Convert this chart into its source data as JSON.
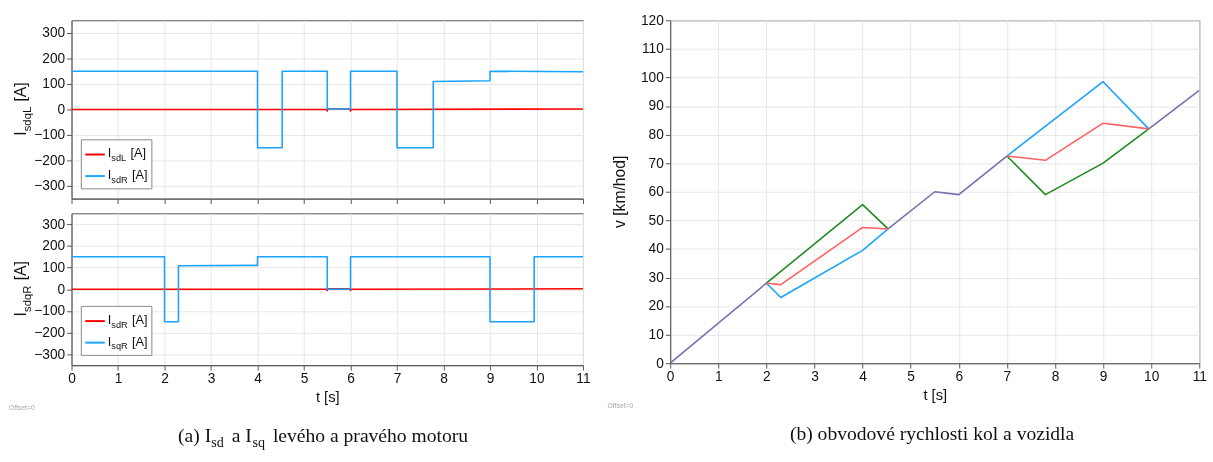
{
  "chart_data": [
    {
      "type": "line",
      "ylabel": "I$_{sdqL}$ [A]",
      "xlim": [
        0,
        11
      ],
      "xticks": [
        0,
        1,
        2,
        3,
        4,
        5,
        6,
        7,
        8,
        9,
        10,
        11
      ],
      "ylim": [
        -350,
        350
      ],
      "yticks": [
        -300,
        -200,
        -100,
        0,
        100,
        200,
        300
      ],
      "grid": true,
      "legend": "bottom left",
      "tick_labels": "y",
      "series": [
        {
          "name": "I$_{sdL}$ [A]",
          "color": "#ff0000",
          "x": [
            0,
            5.49,
            5.5,
            5.51,
            5.99,
            6,
            6.01,
            11
          ],
          "values": [
            0,
            0,
            -6,
            2,
            2,
            -6,
            0,
            2
          ]
        },
        {
          "name": "I$_{sdR}$ [A]",
          "color": "#1aa3ff",
          "x": [
            0,
            4,
            4,
            4.53,
            4.53,
            5.5,
            5.5,
            6,
            6,
            7,
            7,
            7.78,
            7.78,
            9,
            9,
            11
          ],
          "values": [
            150,
            150,
            -150,
            -150,
            150,
            150,
            2,
            2,
            150,
            150,
            -150,
            -150,
            110,
            113,
            150,
            148
          ]
        }
      ]
    },
    {
      "type": "line",
      "xlabel": "t [s]",
      "ylabel": "I$_{sdqR}$ [A]",
      "xlim": [
        0,
        11
      ],
      "xticks": [
        0,
        1,
        2,
        3,
        4,
        5,
        6,
        7,
        8,
        9,
        10,
        11
      ],
      "ylim": [
        -350,
        350
      ],
      "yticks": [
        -300,
        -200,
        -100,
        0,
        100,
        200,
        300
      ],
      "grid": true,
      "legend": "bottom left",
      "annotations": [
        "Offset=0",
        "(a) I$_{sd}$ a I$_{sq}$ levého a pravého motoru"
      ],
      "series": [
        {
          "name": "I$_{sdR}$ [A]",
          "color": "#ff0000",
          "x": [
            0,
            5.49,
            5.5,
            5.51,
            5.99,
            6,
            6.01,
            11
          ],
          "values": [
            0,
            0,
            -6,
            2,
            2,
            -6,
            0,
            2
          ]
        },
        {
          "name": "I$_{sqR}$ [A]",
          "color": "#1aa3ff",
          "x": [
            0,
            2,
            2,
            2.3,
            2.3,
            4,
            4,
            5.5,
            5.5,
            6,
            6,
            9,
            9,
            9.95,
            9.95,
            11
          ],
          "values": [
            150,
            150,
            -150,
            -150,
            108,
            110,
            150,
            150,
            0,
            0,
            150,
            150,
            -150,
            -150,
            150,
            150
          ]
        }
      ]
    },
    {
      "type": "line",
      "xlabel": "t [s]",
      "ylabel": "v [km/hod]",
      "xlim": [
        0,
        11
      ],
      "xticks": [
        0,
        1,
        2,
        3,
        4,
        5,
        6,
        7,
        8,
        9,
        10,
        11
      ],
      "ylim": [
        0,
        120
      ],
      "yticks": [
        0,
        10,
        20,
        30,
        40,
        50,
        60,
        70,
        80,
        90,
        100,
        110,
        120
      ],
      "grid": true,
      "annotations": [
        "Offset=0",
        "(b) obvodové rychlosti kol a vozidla"
      ],
      "series": [
        {
          "color": "#1aa3ff",
          "x": [
            2,
            2.3,
            4,
            4.53,
            6,
            7,
            9,
            9.95
          ],
          "values": [
            28,
            23,
            39.5,
            47,
            null,
            72.5,
            98.5,
            82
          ]
        },
        {
          "color": "#1f8a1f",
          "x": [
            2,
            4,
            4.53,
            6,
            7,
            7.8,
            9,
            9.95
          ],
          "values": [
            28,
            55.5,
            47,
            null,
            72.5,
            59,
            70,
            82
          ]
        },
        {
          "color": "#ff6060",
          "x": [
            2,
            2.3,
            4,
            4.53,
            6,
            7,
            7.8,
            9,
            9.95
          ],
          "values": [
            28,
            27.5,
            47.5,
            47,
            null,
            72.5,
            71,
            84,
            82
          ]
        },
        {
          "color": "#7b6bb0",
          "x": [
            0,
            2,
            3,
            4.53,
            5.5,
            6,
            7,
            8,
            9.95,
            11
          ],
          "values": [
            0,
            28,
            null,
            47,
            60,
            59,
            72.5,
            null,
            82,
            95.5
          ]
        }
      ]
    }
  ]
}
